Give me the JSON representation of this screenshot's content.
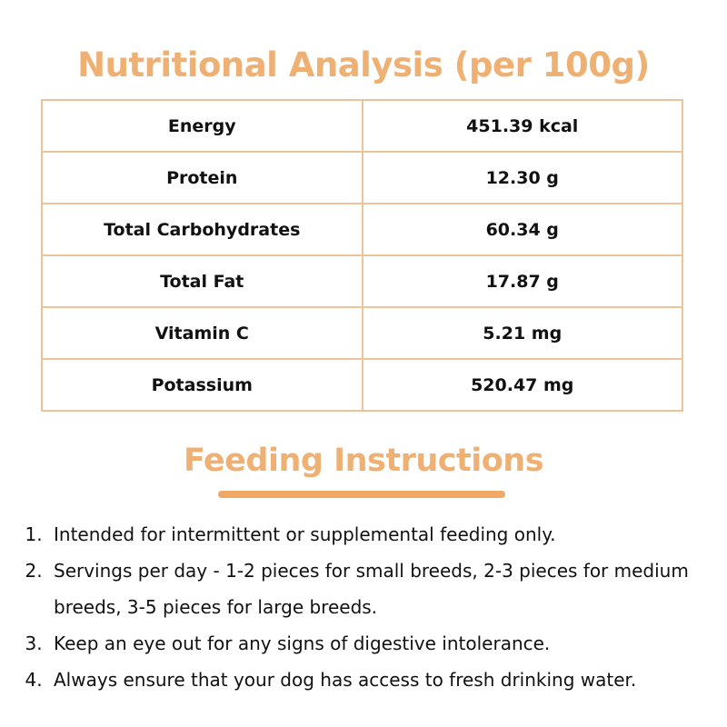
{
  "header": {
    "title": "Nutritional Analysis (per 100g)"
  },
  "table": {
    "rows": [
      [
        "Energy",
        "451.39 kcal"
      ],
      [
        "Protein",
        "12.30 g"
      ],
      [
        "Total Carbohydrates",
        "60.34 g"
      ],
      [
        "Total Fat",
        "17.87 g"
      ],
      [
        "Vitamin C",
        "5.21 mg"
      ],
      [
        "Potassium",
        "520.47 mg"
      ]
    ]
  },
  "feeding": {
    "title": "Feeding Instructions",
    "items": [
      "Intended for intermittent or supplemental feeding only.",
      "Servings per day - 1-2 pieces for small breeds, 2-3 pieces for medium breeds, 3-5 pieces for large breeds.",
      "Keep an eye out for any signs of digestive intolerance.",
      "Always ensure that your dog has access to fresh drinking water."
    ]
  }
}
